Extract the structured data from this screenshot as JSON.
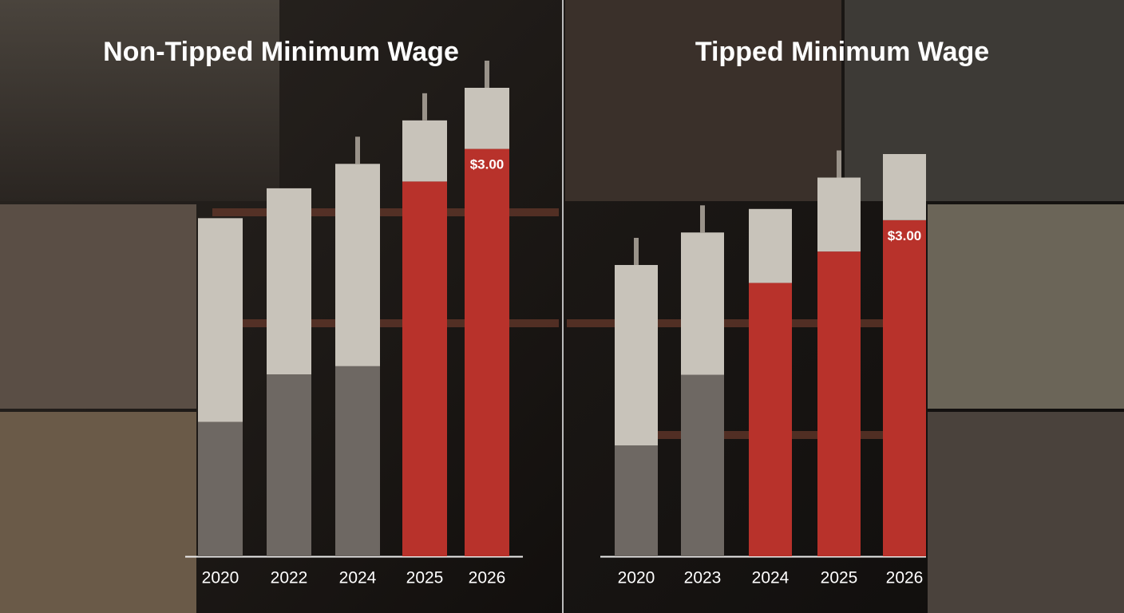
{
  "chart_data": [
    {
      "type": "bar",
      "stacked": true,
      "title": "Non-Tipped Minimum Wage",
      "categories": [
        "2020",
        "2022",
        "2024",
        "2025",
        "2026"
      ],
      "series": [
        {
          "values": [
            0.99,
            1.34,
            1.4,
            2.76,
            3.0
          ],
          "colors": [
            "#6e6863",
            "#6e6863",
            "#6e6863",
            "#b8322b",
            "#b8322b"
          ],
          "value_labels": [
            null,
            null,
            null,
            null,
            "$3.00"
          ]
        },
        {
          "values": [
            1.5,
            1.37,
            1.49,
            0.45,
            0.45
          ],
          "color": "#c8c3ba"
        }
      ]
    },
    {
      "type": "bar",
      "stacked": true,
      "title": "Tipped Minimum Wage",
      "categories": [
        "2020",
        "2023",
        "2024",
        "2025",
        "2026"
      ],
      "series": [
        {
          "values": [
            0.99,
            1.62,
            2.44,
            2.72,
            3.0
          ],
          "colors": [
            "#6e6863",
            "#6e6863",
            "#b8322b",
            "#b8322b",
            "#b8322b"
          ],
          "value_labels": [
            null,
            null,
            null,
            null,
            "$3.00"
          ]
        },
        {
          "values": [
            1.61,
            1.27,
            0.66,
            0.66,
            0.59
          ],
          "color": "#c8c3ba"
        }
      ]
    }
  ]
}
